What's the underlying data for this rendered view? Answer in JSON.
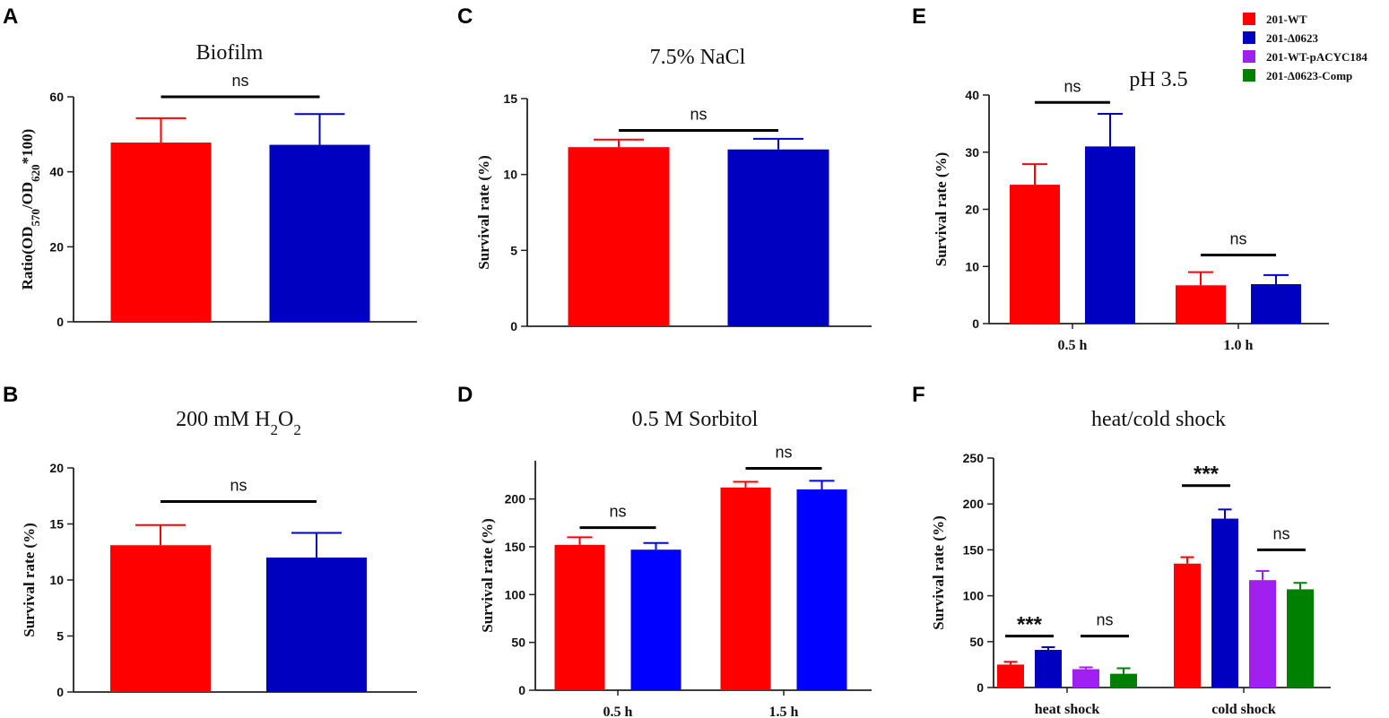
{
  "chart_data": [
    {
      "id": "A",
      "letter": "A",
      "type": "bar",
      "title": "Biofilm",
      "ylabel": {
        "prefix": "Ratio(OD",
        "sub1": "570",
        "mid": "/OD",
        "sub2": "620",
        "suffix": "*100)"
      },
      "ylim": [
        0,
        60
      ],
      "yticks": [
        "0",
        "20",
        "40",
        "60"
      ],
      "categories": [
        ""
      ],
      "series": [
        {
          "name": "201-WT",
          "color": "#ff0000",
          "values": [
            47.8
          ],
          "errors": [
            6.5
          ]
        },
        {
          "name": "201-Δ0623",
          "color": "#0000c0",
          "values": [
            47.2
          ],
          "errors": [
            8.2
          ]
        }
      ],
      "significance": [
        {
          "label": "ns",
          "from_series": 0,
          "to_series": 1,
          "category": 0,
          "y": 60
        }
      ]
    },
    {
      "id": "B",
      "letter": "B",
      "type": "bar",
      "title": {
        "prefix": "200 mM H",
        "sub1": "2",
        "mid": "O",
        "sub2": "2"
      },
      "ylabel": "Survival rate (%)",
      "ylim": [
        0,
        20
      ],
      "yticks": [
        "0",
        "5",
        "10",
        "15",
        "20"
      ],
      "categories": [
        ""
      ],
      "series": [
        {
          "name": "201-WT",
          "color": "#ff0000",
          "values": [
            13.1
          ],
          "errors": [
            1.8
          ]
        },
        {
          "name": "201-Δ0623",
          "color": "#0000c0",
          "values": [
            12.0
          ],
          "errors": [
            2.2
          ]
        }
      ],
      "significance": [
        {
          "label": "ns",
          "from_series": 0,
          "to_series": 1,
          "category": 0,
          "y": 17.0
        }
      ]
    },
    {
      "id": "C",
      "letter": "C",
      "type": "bar",
      "title": "7.5% NaCl",
      "ylabel": "Survival rate (%)",
      "ylim": [
        0,
        15
      ],
      "yticks": [
        "0",
        "5",
        "10",
        "15"
      ],
      "categories": [
        ""
      ],
      "series": [
        {
          "name": "201-WT",
          "color": "#ff0000",
          "values": [
            11.8
          ],
          "errors": [
            0.5
          ]
        },
        {
          "name": "201-Δ0623",
          "color": "#0000c0",
          "values": [
            11.65
          ],
          "errors": [
            0.7
          ]
        }
      ],
      "significance": [
        {
          "label": "ns",
          "from_series": 0,
          "to_series": 1,
          "category": 0,
          "y": 12.9
        }
      ]
    },
    {
      "id": "D",
      "letter": "D",
      "type": "bar",
      "title": "0.5 M Sorbitol",
      "ylabel": "Survival rate (%)",
      "ylim": [
        0,
        240
      ],
      "yticks": [
        "0",
        "50",
        "100",
        "150",
        "200"
      ],
      "categories": [
        "0.5 h",
        "1.5 h"
      ],
      "series": [
        {
          "name": "201-WT",
          "color": "#ff0000",
          "values": [
            152,
            212
          ],
          "errors": [
            8,
            6
          ]
        },
        {
          "name": "201-Δ0623",
          "color": "#0000ff",
          "values": [
            147,
            210
          ],
          "errors": [
            7,
            9
          ]
        }
      ],
      "significance": [
        {
          "label": "ns",
          "from_series": 0,
          "to_series": 1,
          "category": 0,
          "y": 170
        },
        {
          "label": "ns",
          "from_series": 0,
          "to_series": 1,
          "category": 1,
          "y": 232
        }
      ]
    },
    {
      "id": "E",
      "letter": "E",
      "type": "bar",
      "title": "pH 3.5",
      "ylabel": "Survival rate (%)",
      "ylim": [
        0,
        40
      ],
      "yticks": [
        "0",
        "10",
        "20",
        "30",
        "40"
      ],
      "categories": [
        "0.5 h",
        "1.0 h"
      ],
      "series": [
        {
          "name": "201-WT",
          "color": "#ff0000",
          "values": [
            24.3,
            6.7
          ],
          "errors": [
            3.6,
            2.3
          ]
        },
        {
          "name": "201-Δ0623",
          "color": "#0000c0",
          "values": [
            31.0,
            6.9
          ],
          "errors": [
            5.7,
            1.6
          ]
        }
      ],
      "significance": [
        {
          "label": "ns",
          "from_series": 0,
          "to_series": 1,
          "category": 0,
          "y": 38.7
        },
        {
          "label": "ns",
          "from_series": 0,
          "to_series": 1,
          "category": 1,
          "y": 12.0
        }
      ]
    },
    {
      "id": "F",
      "letter": "F",
      "type": "bar",
      "title": "heat/cold shock",
      "ylabel": "Survival rate (%)",
      "ylim": [
        0,
        250
      ],
      "yticks": [
        "0",
        "50",
        "100",
        "150",
        "200",
        "250"
      ],
      "categories": [
        "heat shock",
        "cold shock"
      ],
      "series": [
        {
          "name": "201-WT",
          "color": "#ff0000",
          "values": [
            25,
            135
          ],
          "errors": [
            3,
            7
          ]
        },
        {
          "name": "201-Δ0623",
          "color": "#0000c0",
          "values": [
            41,
            184
          ],
          "errors": [
            3,
            10
          ]
        },
        {
          "name": "201-WT-pACYC184",
          "color": "#a020f0",
          "values": [
            20,
            117
          ],
          "errors": [
            2,
            10
          ]
        },
        {
          "name": "201-Δ0623-Comp",
          "color": "#008000",
          "values": [
            15,
            107
          ],
          "errors": [
            6,
            7
          ]
        }
      ],
      "significance": [
        {
          "label": "***",
          "from_series": 0,
          "to_series": 1,
          "category": 0,
          "y": 56
        },
        {
          "label": "ns",
          "from_series": 2,
          "to_series": 3,
          "category": 0,
          "y": 56
        },
        {
          "label": "***",
          "from_series": 0,
          "to_series": 1,
          "category": 1,
          "y": 220
        },
        {
          "label": "ns",
          "from_series": 2,
          "to_series": 3,
          "category": 1,
          "y": 150
        }
      ]
    }
  ],
  "legend": [
    {
      "label": "201-WT",
      "color": "#ff0000"
    },
    {
      "label": "201-Δ0623",
      "color": "#0000c0"
    },
    {
      "label": "201-WT-pACYC184",
      "color": "#a020f0"
    },
    {
      "label": "201-Δ0623-Comp",
      "color": "#008000"
    }
  ]
}
